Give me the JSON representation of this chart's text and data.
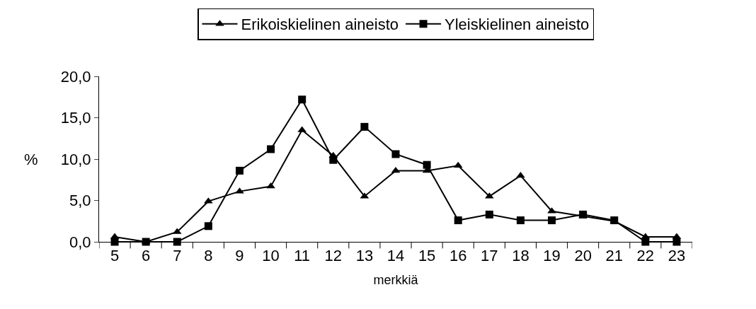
{
  "chart_data": {
    "type": "line",
    "categories": [
      "5",
      "6",
      "7",
      "8",
      "9",
      "10",
      "11",
      "12",
      "13",
      "14",
      "15",
      "16",
      "17",
      "18",
      "19",
      "20",
      "21",
      "22",
      "23"
    ],
    "series": [
      {
        "name": "Erikoiskielinen aineisto",
        "color": "#000000",
        "marker": "triangle",
        "values": [
          0.6,
          0,
          1.2,
          4.9,
          6.1,
          6.7,
          13.5,
          10.4,
          5.5,
          8.6,
          8.6,
          9.2,
          5.5,
          8.0,
          3.7,
          3.1,
          2.5,
          0.6,
          0.6
        ]
      },
      {
        "name": "Yleiskielinen aineisto",
        "color": "#000000",
        "marker": "square",
        "values": [
          0,
          0,
          0,
          1.9,
          8.6,
          11.2,
          17.2,
          9.9,
          13.9,
          10.6,
          9.3,
          2.6,
          3.3,
          2.6,
          2.6,
          3.3,
          2.6,
          0,
          0
        ]
      }
    ],
    "xlabel": "merkkiä",
    "ylabel": "%",
    "ylim": [
      0,
      20
    ],
    "yticks": [
      {
        "value": 0,
        "label": "0,0"
      },
      {
        "value": 5,
        "label": "5,0"
      },
      {
        "value": 10,
        "label": "10,0"
      },
      {
        "value": 15,
        "label": "15,0"
      },
      {
        "value": 20,
        "label": "20,0"
      }
    ],
    "legend": "top",
    "line_style": "solid"
  }
}
